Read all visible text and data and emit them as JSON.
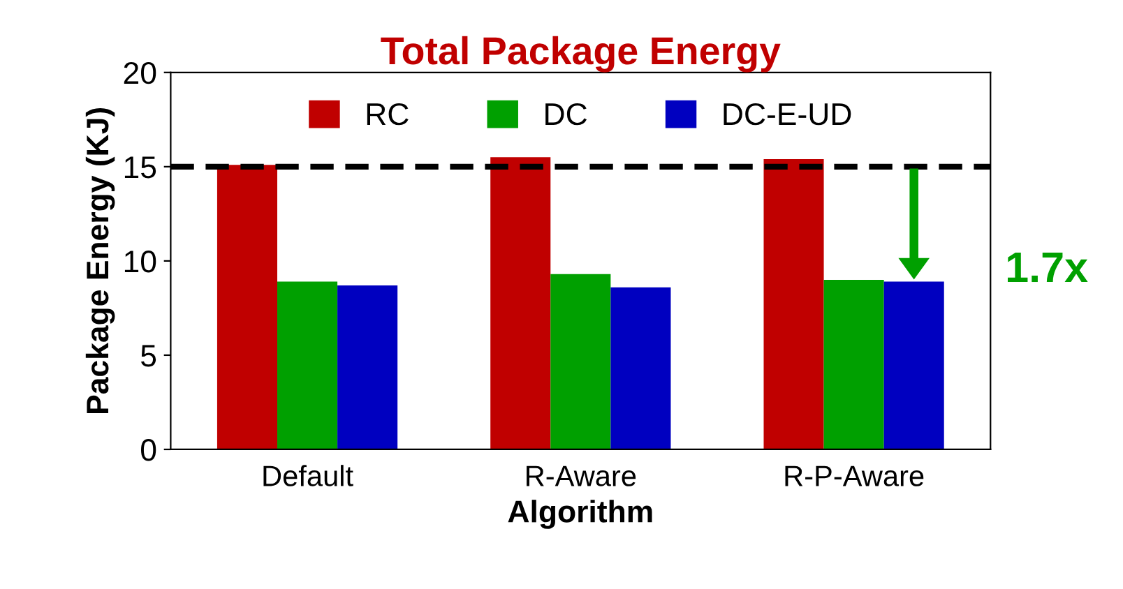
{
  "chart_data": {
    "type": "bar",
    "title": "Total Package Energy",
    "xlabel": "Algorithm",
    "ylabel": "Package Energy (KJ)",
    "categories": [
      "Default",
      "R-Aware",
      "R-P-Aware"
    ],
    "series": [
      {
        "name": "RC",
        "color": "#c00000",
        "values": [
          15.1,
          15.5,
          15.4
        ]
      },
      {
        "name": "DC",
        "color": "#00a000",
        "values": [
          8.9,
          9.3,
          9.0
        ]
      },
      {
        "name": "DC-E-UD",
        "color": "#0000c0",
        "values": [
          8.7,
          8.6,
          8.9
        ]
      }
    ],
    "ylim": [
      0,
      20
    ],
    "yticks": [
      0,
      5,
      10,
      15,
      20
    ],
    "grid": false,
    "legend": "top",
    "ref_lines": [
      {
        "axis": "y",
        "value": 15,
        "color": "#000000",
        "line_style": "dashed"
      }
    ],
    "annotations": [
      "1.7x"
    ]
  }
}
